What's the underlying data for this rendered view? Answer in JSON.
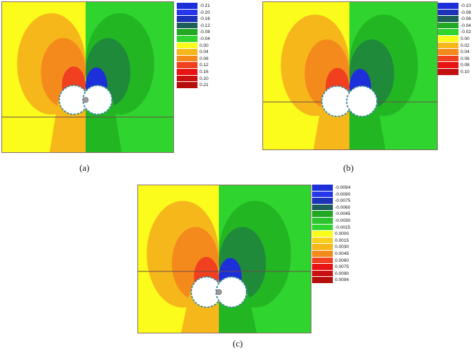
{
  "panels": [
    {
      "id": "a",
      "caption": "(a)",
      "legend": {
        "labels": [
          "-0.21",
          "-0.20",
          "-0.16",
          "-0.12",
          "-0.08",
          "-0.04",
          "0.00",
          "0.04",
          "0.08",
          "0.12",
          "0.16",
          "0.20",
          "0.21"
        ],
        "colors": [
          "#1d2fd8",
          "#2636ea",
          "#1c32b8",
          "#1f5f5a",
          "#23a823",
          "#2fd42f",
          "#fbfb1c",
          "#f6b71a",
          "#f58a1c",
          "#f04020",
          "#e81414",
          "#c90f0f",
          "#b60d0d"
        ]
      }
    },
    {
      "id": "b",
      "caption": "(b)",
      "legend": {
        "labels": [
          "-0.10",
          "-0.08",
          "-0.06",
          "-0.04",
          "-0.02",
          "0.00",
          "0.02",
          "0.04",
          "0.06",
          "0.08",
          "0.10"
        ],
        "colors": [
          "#1d2fd8",
          "#1c32b8",
          "#1f5f5a",
          "#23a823",
          "#2fd42f",
          "#fbfb1c",
          "#f6b71a",
          "#f58a1c",
          "#f04020",
          "#e81414",
          "#c20f0f"
        ]
      }
    },
    {
      "id": "c",
      "caption": "(c)",
      "legend": {
        "labels": [
          "-0.0094",
          "-0.0090",
          "-0.0075",
          "-0.0060",
          "-0.0045",
          "-0.0030",
          "-0.0015",
          "0.0000",
          "0.0015",
          "0.0030",
          "0.0045",
          "0.0060",
          "0.0075",
          "0.0090",
          "0.0094"
        ],
        "colors": [
          "#1d2fd8",
          "#2636ea",
          "#1c32b8",
          "#1f5f5a",
          "#23a823",
          "#2cc42c",
          "#2fd42f",
          "#fbfb1c",
          "#f8cf1a",
          "#f6b71a",
          "#f58a1c",
          "#f04020",
          "#e81414",
          "#c90f0f",
          "#b60d0d"
        ]
      }
    }
  ]
}
